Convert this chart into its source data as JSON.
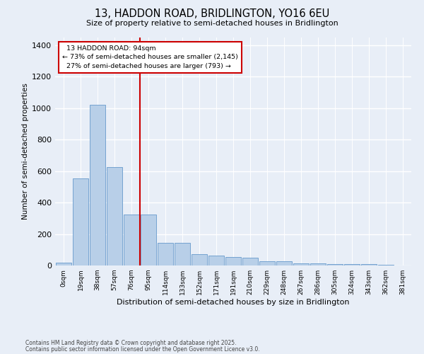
{
  "title_line1": "13, HADDON ROAD, BRIDLINGTON, YO16 6EU",
  "title_line2": "Size of property relative to semi-detached houses in Bridlington",
  "xlabel": "Distribution of semi-detached houses by size in Bridlington",
  "ylabel": "Number of semi-detached properties",
  "bar_labels": [
    "0sqm",
    "19sqm",
    "38sqm",
    "57sqm",
    "76sqm",
    "95sqm",
    "114sqm",
    "133sqm",
    "152sqm",
    "171sqm",
    "191sqm",
    "210sqm",
    "229sqm",
    "248sqm",
    "267sqm",
    "286sqm",
    "305sqm",
    "324sqm",
    "343sqm",
    "362sqm",
    "381sqm"
  ],
  "bar_heights": [
    20,
    555,
    1020,
    625,
    325,
    325,
    145,
    145,
    70,
    65,
    52,
    50,
    27,
    27,
    15,
    15,
    10,
    10,
    8,
    5,
    2
  ],
  "bar_color": "#b8cfe8",
  "bar_edge_color": "#6699cc",
  "pct_smaller": 73,
  "pct_larger": 27,
  "n_smaller": 2145,
  "n_larger": 793,
  "property_label": "13 HADDON ROAD: 94sqm",
  "vline_color": "#cc0000",
  "annotation_box_edge_color": "#cc0000",
  "background_color": "#e8eef7",
  "plot_bg_color": "#e8eef7",
  "ylim": [
    0,
    1450
  ],
  "yticks": [
    0,
    200,
    400,
    600,
    800,
    1000,
    1200,
    1400
  ],
  "footnote1": "Contains HM Land Registry data © Crown copyright and database right 2025.",
  "footnote2": "Contains public sector information licensed under the Open Government Licence v3.0."
}
